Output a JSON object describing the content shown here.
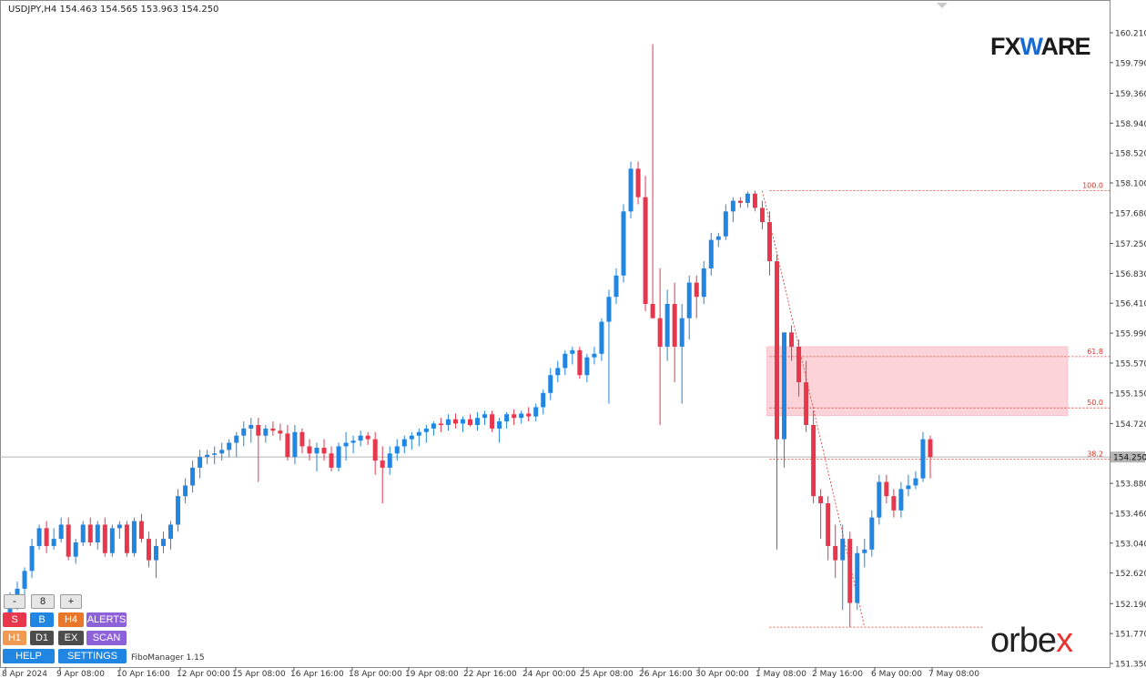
{
  "header": {
    "symbol_line": "USDJPY,H4  154.463 154.565 153.963 154.250"
  },
  "logos": {
    "fx_prefix": "FX",
    "fx_w": "W",
    "fx_suffix": "ARE",
    "orbex_prefix": "orbe",
    "orbex_x": "x"
  },
  "panel": {
    "minus": "-",
    "value": "8",
    "plus": "+",
    "s": "S",
    "b": "B",
    "h4": "H4",
    "alerts": "ALERTS",
    "h1": "H1",
    "d1": "D1",
    "ex": "EX",
    "scan": "SCAN",
    "help": "HELP",
    "settings": "SETTINGS",
    "fibo": "FiboManager 1.15"
  },
  "colors": {
    "bull": "#2185e2",
    "bear": "#e8364c",
    "fib": "#d9342b",
    "zone": "#fdd3da"
  },
  "chart_data": {
    "type": "candlestick",
    "symbol": "USDJPY",
    "timeframe": "H4",
    "ylim": [
      151.35,
      160.21
    ],
    "y_ticks": [
      "160.210",
      "159.790",
      "159.360",
      "158.940",
      "158.520",
      "158.100",
      "157.680",
      "157.250",
      "156.830",
      "156.410",
      "155.990",
      "155.570",
      "155.150",
      "154.720",
      "154.250",
      "153.880",
      "153.460",
      "153.040",
      "152.620",
      "152.190",
      "151.770",
      "151.350"
    ],
    "current_price": "154.250",
    "x_ticks": [
      "8 Apr 2024",
      "9 Apr 08:00",
      "10 Apr 16:00",
      "12 Apr 00:00",
      "15 Apr 08:00",
      "16 Apr 16:00",
      "18 Apr 00:00",
      "19 Apr 08:00",
      "22 Apr 16:00",
      "24 Apr 00:00",
      "25 Apr 08:00",
      "26 Apr 16:00",
      "30 Apr 00:00",
      "1 May 08:00",
      "2 May 16:00",
      "6 May 00:00",
      "7 May 08:00"
    ],
    "fib_levels": [
      {
        "label": "100.0",
        "value": 157.99
      },
      {
        "label": "61.8",
        "value": 155.66
      },
      {
        "label": "50.0",
        "value": 154.94
      },
      {
        "label": "38.2",
        "value": 154.22
      }
    ],
    "fib_low": 151.86,
    "zone": [
      154.83,
      155.8
    ],
    "candles": [
      [
        152.02,
        152.35,
        151.95,
        152.2
      ],
      [
        152.2,
        152.5,
        152.1,
        152.4
      ],
      [
        152.4,
        152.7,
        152.3,
        152.65
      ],
      [
        152.65,
        153.1,
        152.55,
        153.0
      ],
      [
        153.0,
        153.3,
        152.95,
        153.25
      ],
      [
        153.25,
        153.35,
        152.9,
        153.0
      ],
      [
        153.0,
        153.25,
        152.95,
        153.1
      ],
      [
        153.1,
        153.4,
        153.05,
        153.3
      ],
      [
        153.3,
        153.4,
        152.8,
        152.85
      ],
      [
        152.85,
        153.1,
        152.75,
        153.05
      ],
      [
        153.05,
        153.35,
        153.0,
        153.3
      ],
      [
        153.3,
        153.4,
        153.0,
        153.05
      ],
      [
        153.05,
        153.35,
        152.95,
        153.3
      ],
      [
        153.3,
        153.4,
        152.85,
        152.9
      ],
      [
        152.9,
        153.3,
        152.85,
        153.25
      ],
      [
        153.25,
        153.35,
        153.1,
        153.3
      ],
      [
        153.3,
        153.35,
        152.85,
        152.9
      ],
      [
        152.9,
        153.4,
        152.85,
        153.35
      ],
      [
        153.35,
        153.45,
        153.05,
        153.1
      ],
      [
        153.1,
        153.2,
        152.7,
        152.8
      ],
      [
        152.8,
        153.1,
        152.55,
        153.0
      ],
      [
        153.0,
        153.2,
        152.9,
        153.1
      ],
      [
        153.1,
        153.35,
        152.95,
        153.3
      ],
      [
        153.3,
        153.8,
        153.2,
        153.7
      ],
      [
        153.7,
        153.95,
        153.6,
        153.85
      ],
      [
        153.85,
        154.2,
        153.75,
        154.1
      ],
      [
        154.1,
        154.35,
        153.95,
        154.25
      ],
      [
        154.25,
        154.35,
        154.15,
        154.28
      ],
      [
        154.28,
        154.4,
        154.15,
        154.3
      ],
      [
        154.3,
        154.45,
        154.2,
        154.35
      ],
      [
        154.35,
        154.5,
        154.25,
        154.45
      ],
      [
        154.45,
        154.6,
        154.25,
        154.55
      ],
      [
        154.55,
        154.75,
        154.4,
        154.65
      ],
      [
        154.65,
        154.8,
        154.45,
        154.7
      ],
      [
        154.7,
        154.8,
        153.9,
        154.55
      ],
      [
        154.55,
        154.7,
        154.45,
        154.65
      ],
      [
        154.65,
        154.75,
        154.55,
        154.62
      ],
      [
        154.62,
        154.72,
        154.48,
        154.58
      ],
      [
        154.58,
        154.7,
        154.2,
        154.25
      ],
      [
        154.25,
        154.7,
        154.15,
        154.6
      ],
      [
        154.6,
        154.65,
        154.3,
        154.4
      ],
      [
        154.4,
        154.5,
        154.2,
        154.3
      ],
      [
        154.3,
        154.45,
        154.05,
        154.38
      ],
      [
        154.38,
        154.5,
        154.2,
        154.3
      ],
      [
        154.3,
        154.4,
        154.05,
        154.1
      ],
      [
        154.1,
        154.45,
        154.05,
        154.4
      ],
      [
        154.4,
        154.6,
        154.2,
        154.45
      ],
      [
        154.45,
        154.55,
        154.3,
        154.48
      ],
      [
        154.48,
        154.62,
        154.4,
        154.55
      ],
      [
        154.55,
        154.6,
        154.42,
        154.5
      ],
      [
        154.5,
        154.6,
        154.0,
        154.2
      ],
      [
        154.2,
        154.4,
        153.6,
        154.1
      ],
      [
        154.1,
        154.4,
        154.0,
        154.3
      ],
      [
        154.3,
        154.5,
        154.2,
        154.4
      ],
      [
        154.4,
        154.55,
        154.3,
        154.5
      ],
      [
        154.5,
        154.6,
        154.35,
        154.55
      ],
      [
        154.55,
        154.65,
        154.4,
        154.6
      ],
      [
        154.6,
        154.7,
        154.45,
        154.65
      ],
      [
        154.65,
        154.75,
        154.55,
        154.72
      ],
      [
        154.72,
        154.8,
        154.6,
        154.7
      ],
      [
        154.7,
        154.85,
        154.62,
        154.78
      ],
      [
        154.78,
        154.86,
        154.65,
        154.72
      ],
      [
        154.72,
        154.82,
        154.6,
        154.78
      ],
      [
        154.78,
        154.85,
        154.68,
        154.7
      ],
      [
        154.7,
        154.88,
        154.62,
        154.8
      ],
      [
        154.8,
        154.9,
        154.7,
        154.85
      ],
      [
        154.85,
        154.9,
        154.6,
        154.65
      ],
      [
        154.65,
        154.8,
        154.45,
        154.75
      ],
      [
        154.75,
        154.88,
        154.65,
        154.85
      ],
      [
        154.85,
        154.92,
        154.7,
        154.8
      ],
      [
        154.8,
        154.9,
        154.72,
        154.86
      ],
      [
        154.86,
        154.95,
        154.75,
        154.82
      ],
      [
        154.82,
        155.0,
        154.75,
        154.95
      ],
      [
        154.95,
        155.2,
        154.85,
        155.15
      ],
      [
        155.15,
        155.5,
        155.05,
        155.4
      ],
      [
        155.4,
        155.6,
        155.3,
        155.5
      ],
      [
        155.5,
        155.75,
        155.4,
        155.7
      ],
      [
        155.7,
        155.8,
        155.55,
        155.75
      ],
      [
        155.75,
        155.8,
        155.35,
        155.4
      ],
      [
        155.4,
        155.7,
        155.3,
        155.65
      ],
      [
        155.65,
        155.8,
        155.55,
        155.7
      ],
      [
        155.7,
        156.2,
        155.6,
        156.15
      ],
      [
        156.15,
        156.6,
        155.0,
        156.5
      ],
      [
        156.5,
        156.9,
        156.4,
        156.8
      ],
      [
        156.8,
        157.8,
        156.7,
        157.7
      ],
      [
        157.7,
        158.4,
        157.6,
        158.3
      ],
      [
        158.3,
        158.4,
        157.8,
        157.9
      ],
      [
        157.9,
        158.2,
        156.3,
        156.4
      ],
      [
        156.4,
        160.05,
        156.2,
        156.2
      ],
      [
        156.2,
        156.9,
        154.7,
        155.8
      ],
      [
        155.8,
        156.6,
        155.6,
        156.4
      ],
      [
        156.4,
        156.7,
        155.3,
        155.8
      ],
      [
        155.8,
        156.4,
        155.0,
        156.2
      ],
      [
        156.2,
        156.8,
        155.9,
        156.7
      ],
      [
        156.7,
        156.8,
        156.2,
        156.5
      ],
      [
        156.5,
        157.0,
        156.4,
        156.9
      ],
      [
        156.9,
        157.4,
        156.8,
        157.3
      ],
      [
        157.3,
        157.4,
        157.2,
        157.35
      ],
      [
        157.35,
        157.8,
        157.3,
        157.7
      ],
      [
        157.7,
        157.9,
        157.55,
        157.85
      ],
      [
        157.85,
        157.9,
        157.75,
        157.82
      ],
      [
        157.82,
        157.98,
        157.75,
        157.95
      ],
      [
        157.95,
        157.99,
        157.7,
        157.75
      ],
      [
        157.75,
        157.85,
        157.45,
        157.55
      ],
      [
        157.55,
        157.7,
        156.8,
        157.0
      ],
      [
        157.0,
        157.1,
        152.95,
        154.5
      ],
      [
        154.5,
        156.0,
        154.1,
        156.0
      ],
      [
        156.0,
        156.1,
        155.6,
        155.8
      ],
      [
        155.8,
        155.9,
        155.1,
        155.3
      ],
      [
        155.3,
        155.6,
        154.6,
        154.7
      ],
      [
        154.7,
        154.9,
        153.6,
        153.7
      ],
      [
        153.7,
        153.8,
        153.1,
        153.6
      ],
      [
        153.6,
        153.7,
        152.8,
        153.0
      ],
      [
        153.0,
        153.3,
        152.55,
        152.8
      ],
      [
        152.8,
        153.3,
        152.1,
        153.1
      ],
      [
        153.1,
        153.2,
        151.86,
        152.2
      ],
      [
        152.2,
        153.0,
        152.1,
        152.9
      ],
      [
        152.9,
        153.1,
        152.7,
        152.95
      ],
      [
        152.95,
        153.5,
        152.85,
        153.4
      ],
      [
        153.4,
        154.0,
        153.3,
        153.9
      ],
      [
        153.9,
        154.0,
        153.6,
        153.7
      ],
      [
        153.7,
        153.8,
        153.4,
        153.5
      ],
      [
        153.5,
        153.9,
        153.4,
        153.8
      ],
      [
        153.8,
        154.0,
        153.7,
        153.85
      ],
      [
        153.85,
        154.05,
        153.8,
        153.95
      ],
      [
        153.95,
        154.6,
        153.9,
        154.5
      ],
      [
        154.5,
        154.55,
        153.95,
        154.25
      ]
    ]
  }
}
